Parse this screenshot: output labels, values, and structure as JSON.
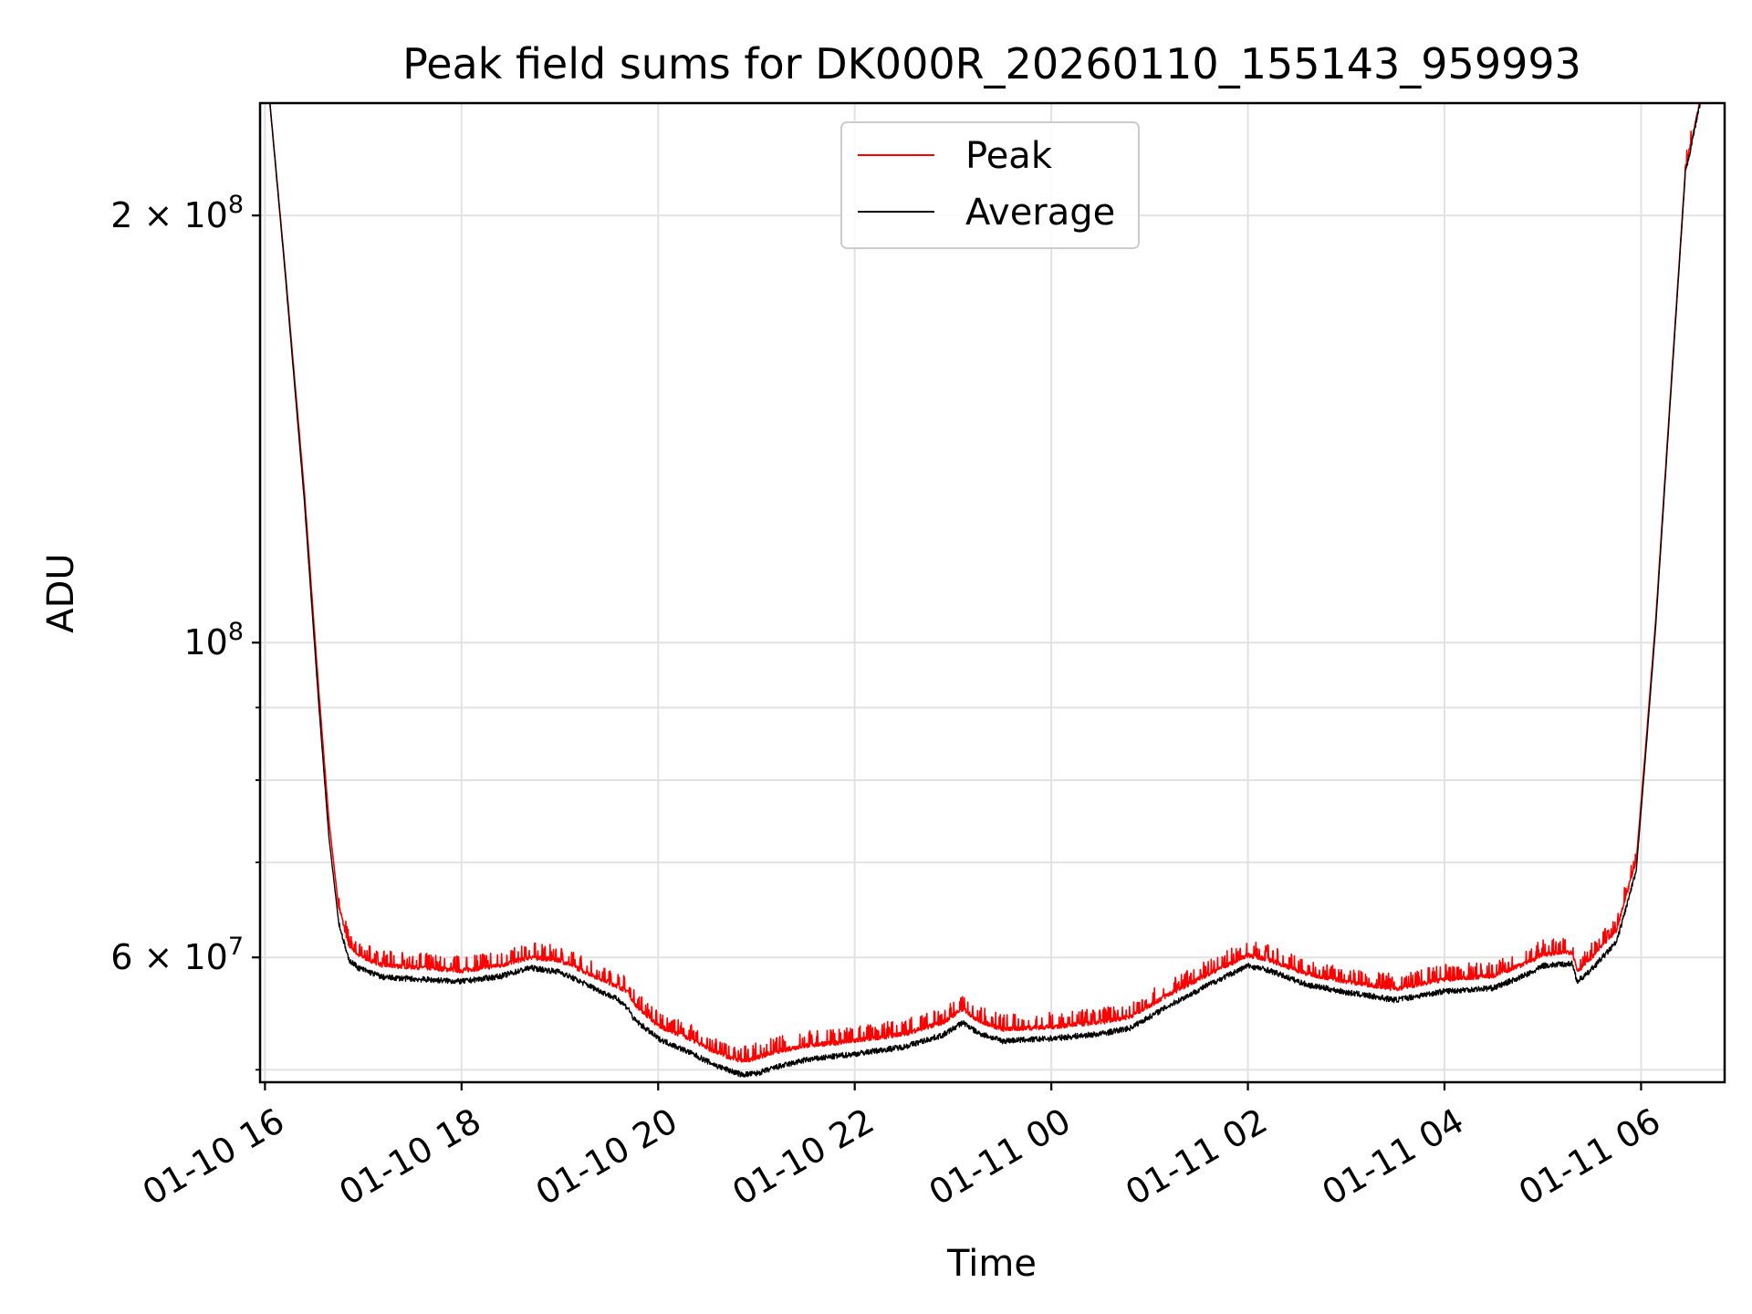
{
  "chart_data": {
    "type": "line",
    "title": "Peak field sums for DK000R_20260110_155143_959993",
    "xlabel": "Time",
    "ylabel": "ADU",
    "yscale": "log",
    "ylim": [
      49000000,
      240000000
    ],
    "xlim_hours": [
      -0.05,
      14.85
    ],
    "grid": true,
    "legend_position": "upper center",
    "x_ticks": [
      {
        "hour": 0,
        "label": "01-10 16"
      },
      {
        "hour": 2,
        "label": "01-10 18"
      },
      {
        "hour": 4,
        "label": "01-10 20"
      },
      {
        "hour": 6,
        "label": "01-10 22"
      },
      {
        "hour": 8,
        "label": "01-11 00"
      },
      {
        "hour": 10,
        "label": "01-11 02"
      },
      {
        "hour": 12,
        "label": "01-11 04"
      },
      {
        "hour": 14,
        "label": "01-11 06"
      }
    ],
    "y_ticks": [
      {
        "value": 60000000,
        "mantissa": "6",
        "exponent": "7"
      },
      {
        "value": 100000000,
        "mantissa": "",
        "exponent": "8"
      },
      {
        "value": 200000000,
        "mantissa": "2",
        "exponent": "8"
      }
    ],
    "y_minor_ticks": [
      50000000,
      70000000,
      80000000,
      90000000
    ],
    "series": [
      {
        "name": "Peak",
        "color": "#ff0000",
        "x_hours": [
          0.05,
          0.2,
          0.4,
          0.55,
          0.65,
          0.75,
          0.85,
          0.95,
          1.2,
          1.6,
          2.0,
          2.4,
          2.7,
          3.0,
          3.3,
          3.6,
          3.7,
          3.75,
          4.0,
          4.3,
          4.6,
          4.85,
          5.0,
          5.2,
          5.5,
          6.0,
          6.5,
          6.9,
          7.1,
          7.25,
          7.5,
          8.0,
          8.5,
          8.8,
          9.2,
          9.6,
          10.0,
          10.2,
          10.6,
          11.0,
          11.5,
          12.0,
          12.5,
          12.9,
          13.0,
          13.3,
          13.35,
          13.45,
          13.75,
          13.95,
          14.05,
          14.15,
          14.3,
          14.45,
          14.6
        ],
        "values": [
          240000000,
          185000000,
          128000000,
          92000000,
          75000000,
          65000000,
          61000000,
          60000000,
          59000000,
          58800000,
          58500000,
          59000000,
          59800000,
          59500000,
          58200000,
          57000000,
          56500000,
          55500000,
          53500000,
          52500000,
          51200000,
          50500000,
          50800000,
          51300000,
          51800000,
          52200000,
          52800000,
          53800000,
          55000000,
          54000000,
          53200000,
          53400000,
          53800000,
          54300000,
          56300000,
          58200000,
          60000000,
          59600000,
          58200000,
          57500000,
          56800000,
          57700000,
          58000000,
          59500000,
          60100000,
          60300000,
          58500000,
          59300000,
          62500000,
          70000000,
          85000000,
          104000000,
          150000000,
          215000000,
          240000000
        ]
      },
      {
        "name": "Average",
        "color": "#000000",
        "x_hours": [
          0.05,
          0.2,
          0.4,
          0.55,
          0.65,
          0.75,
          0.85,
          0.95,
          1.2,
          1.6,
          2.0,
          2.4,
          2.7,
          3.0,
          3.3,
          3.6,
          3.7,
          3.75,
          4.0,
          4.3,
          4.6,
          4.85,
          5.0,
          5.2,
          5.5,
          6.0,
          6.5,
          6.9,
          7.1,
          7.25,
          7.5,
          8.0,
          8.5,
          8.8,
          9.2,
          9.6,
          10.0,
          10.2,
          10.6,
          11.0,
          11.5,
          12.0,
          12.5,
          12.9,
          13.0,
          13.3,
          13.35,
          13.45,
          13.75,
          13.95,
          14.05,
          14.15,
          14.3,
          14.45,
          14.6
        ],
        "values": [
          240000000,
          184000000,
          126000000,
          90000000,
          73000000,
          63500000,
          59800000,
          59000000,
          58100000,
          57900000,
          57700000,
          58200000,
          59000000,
          58600000,
          57300000,
          56000000,
          55200000,
          54300000,
          52600000,
          51500000,
          50300000,
          49600000,
          49700000,
          50200000,
          50800000,
          51300000,
          51900000,
          52900000,
          54000000,
          53100000,
          52400000,
          52600000,
          53000000,
          53500000,
          55500000,
          57400000,
          59200000,
          58800000,
          57400000,
          56700000,
          56000000,
          56800000,
          57100000,
          58600000,
          59200000,
          59400000,
          57700000,
          58400000,
          61500000,
          69000000,
          84000000,
          103000000,
          149000000,
          214000000,
          240000000
        ]
      }
    ]
  }
}
